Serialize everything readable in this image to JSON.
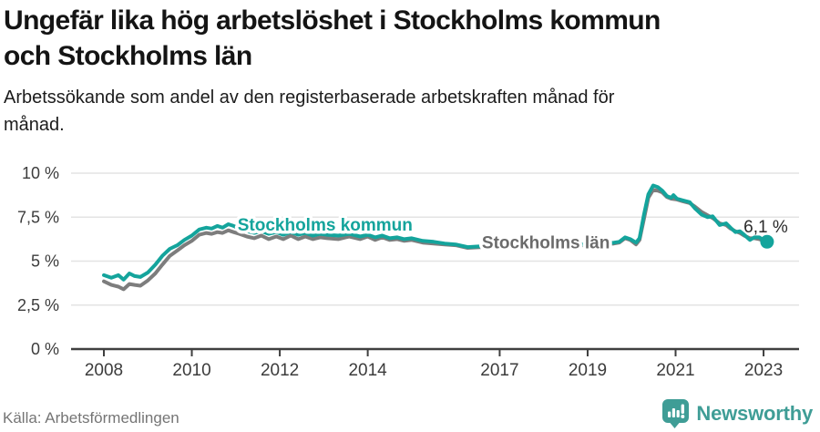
{
  "header": {
    "title_lines": [
      "Ungefär lika hög arbetslöshet i Stockholms kommun",
      "och Stockholms län"
    ],
    "subtitle_lines": [
      "Arbetssökande som andel av den registerbaserade arbetskraften månad för",
      "månad."
    ]
  },
  "footer": {
    "source": "Källa: Arbetsförmedlingen",
    "brand": "Newsworthy"
  },
  "colors": {
    "series_teal": "#14a49c",
    "series_gray": "#7d7d7d",
    "label_gray": "#6b6b6b",
    "brand_teal": "#3f9d96",
    "annotation_text": "#2b2b2b",
    "axis_text": "#3c3c3c",
    "axis_line": "#3f3f3f",
    "grid": "#e3e3e3",
    "title_text": "#141414"
  },
  "chart_data": {
    "type": "line",
    "title": "Ungefär lika hög arbetslöshet i Stockholms kommun och Stockholms län",
    "subtitle": "Arbetssökande som andel av den registerbaserade arbetskraften månad för månad.",
    "xlabel": "",
    "ylabel": "",
    "unit": "%",
    "grid": "horizontal",
    "legend_position": "inline-labels",
    "xlim": [
      2007.25,
      2023.8
    ],
    "ylim": [
      0,
      10
    ],
    "x_ticks": [
      {
        "value": 2008,
        "label": "2008"
      },
      {
        "value": 2010,
        "label": "2010"
      },
      {
        "value": 2012,
        "label": "2012"
      },
      {
        "value": 2014,
        "label": "2014"
      },
      {
        "value": 2017,
        "label": "2017"
      },
      {
        "value": 2019,
        "label": "2019"
      },
      {
        "value": 2021,
        "label": "2021"
      },
      {
        "value": 2023,
        "label": "2023"
      }
    ],
    "y_ticks": [
      {
        "value": 0,
        "label": "0 %"
      },
      {
        "value": 2.5,
        "label": "2,5 %"
      },
      {
        "value": 5,
        "label": "5 %"
      },
      {
        "value": 7.5,
        "label": "7,5 %"
      },
      {
        "value": 10,
        "label": "10 %"
      }
    ],
    "annotation": {
      "text": "6,1 %",
      "year": 2023.05,
      "value": 7.0
    },
    "series": [
      {
        "id": "stockholms-kommun",
        "name": "Stockholms kommun",
        "color": "#14a49c",
        "label_color": "#14a49c",
        "end_dot": true,
        "label": {
          "text": "Stockholms kommun",
          "year": 2013.03,
          "value": 7.1
        },
        "points": [
          [
            2008.0,
            4.2
          ],
          [
            2008.17,
            4.05
          ],
          [
            2008.33,
            4.2
          ],
          [
            2008.45,
            3.95
          ],
          [
            2008.58,
            4.3
          ],
          [
            2008.7,
            4.15
          ],
          [
            2008.83,
            4.1
          ],
          [
            2009.0,
            4.35
          ],
          [
            2009.17,
            4.8
          ],
          [
            2009.33,
            5.3
          ],
          [
            2009.5,
            5.7
          ],
          [
            2009.67,
            5.9
          ],
          [
            2009.83,
            6.2
          ],
          [
            2010.0,
            6.45
          ],
          [
            2010.17,
            6.8
          ],
          [
            2010.33,
            6.9
          ],
          [
            2010.45,
            6.85
          ],
          [
            2010.58,
            7.0
          ],
          [
            2010.7,
            6.9
          ],
          [
            2010.83,
            7.1
          ],
          [
            2010.95,
            7.0
          ],
          [
            2011.08,
            6.85
          ],
          [
            2011.25,
            6.7
          ],
          [
            2011.42,
            6.6
          ],
          [
            2011.58,
            6.7
          ],
          [
            2011.75,
            6.55
          ],
          [
            2011.92,
            6.65
          ],
          [
            2012.08,
            6.5
          ],
          [
            2012.25,
            6.65
          ],
          [
            2012.42,
            6.5
          ],
          [
            2012.58,
            6.6
          ],
          [
            2012.75,
            6.45
          ],
          [
            2012.92,
            6.55
          ],
          [
            2013.08,
            6.5
          ],
          [
            2013.33,
            6.45
          ],
          [
            2013.58,
            6.55
          ],
          [
            2013.83,
            6.4
          ],
          [
            2014.0,
            6.5
          ],
          [
            2014.17,
            6.35
          ],
          [
            2014.33,
            6.45
          ],
          [
            2014.5,
            6.3
          ],
          [
            2014.67,
            6.35
          ],
          [
            2014.83,
            6.25
          ],
          [
            2015.0,
            6.3
          ],
          [
            2015.25,
            6.15
          ],
          [
            2015.5,
            6.1
          ],
          [
            2015.75,
            6.0
          ],
          [
            2016.0,
            5.95
          ],
          [
            2016.27,
            5.8
          ],
          [
            2016.6,
            5.85
          ],
          [
            2017.0,
            5.9
          ],
          [
            2017.5,
            5.85
          ],
          [
            2018.0,
            5.9
          ],
          [
            2018.5,
            5.95
          ],
          [
            2019.0,
            5.95
          ],
          [
            2019.35,
            6.0
          ],
          [
            2019.6,
            6.05
          ],
          [
            2019.72,
            6.1
          ],
          [
            2019.85,
            6.35
          ],
          [
            2019.97,
            6.25
          ],
          [
            2020.1,
            6.05
          ],
          [
            2020.18,
            6.3
          ],
          [
            2020.28,
            7.65
          ],
          [
            2020.38,
            8.8
          ],
          [
            2020.49,
            9.3
          ],
          [
            2020.6,
            9.2
          ],
          [
            2020.7,
            9.0
          ],
          [
            2020.8,
            8.7
          ],
          [
            2020.9,
            8.6
          ],
          [
            2020.95,
            8.75
          ],
          [
            2021.03,
            8.55
          ],
          [
            2021.17,
            8.45
          ],
          [
            2021.32,
            8.35
          ],
          [
            2021.44,
            8.0
          ],
          [
            2021.59,
            7.65
          ],
          [
            2021.73,
            7.5
          ],
          [
            2021.84,
            7.55
          ],
          [
            2022.0,
            7.05
          ],
          [
            2022.15,
            7.15
          ],
          [
            2022.25,
            6.9
          ],
          [
            2022.36,
            6.65
          ],
          [
            2022.46,
            6.7
          ],
          [
            2022.56,
            6.5
          ],
          [
            2022.69,
            6.2
          ],
          [
            2022.79,
            6.35
          ],
          [
            2022.9,
            6.35
          ],
          [
            2023.0,
            6.2
          ],
          [
            2023.08,
            6.1
          ]
        ]
      },
      {
        "id": "stockholms-lan",
        "name": "Stockholms län",
        "color": "#7d7d7d",
        "label_color": "#6b6b6b",
        "end_dot": false,
        "label": {
          "text": "Stockholms län",
          "year": 2018.05,
          "value": 6.1
        },
        "points": [
          [
            2008.0,
            3.85
          ],
          [
            2008.17,
            3.65
          ],
          [
            2008.33,
            3.55
          ],
          [
            2008.45,
            3.4
          ],
          [
            2008.58,
            3.7
          ],
          [
            2008.7,
            3.65
          ],
          [
            2008.83,
            3.6
          ],
          [
            2009.0,
            3.9
          ],
          [
            2009.17,
            4.3
          ],
          [
            2009.33,
            4.8
          ],
          [
            2009.5,
            5.3
          ],
          [
            2009.67,
            5.6
          ],
          [
            2009.83,
            5.9
          ],
          [
            2010.0,
            6.15
          ],
          [
            2010.17,
            6.5
          ],
          [
            2010.33,
            6.6
          ],
          [
            2010.45,
            6.55
          ],
          [
            2010.58,
            6.65
          ],
          [
            2010.7,
            6.6
          ],
          [
            2010.83,
            6.75
          ],
          [
            2010.95,
            6.65
          ],
          [
            2011.08,
            6.55
          ],
          [
            2011.25,
            6.4
          ],
          [
            2011.42,
            6.3
          ],
          [
            2011.58,
            6.45
          ],
          [
            2011.75,
            6.25
          ],
          [
            2011.92,
            6.4
          ],
          [
            2012.08,
            6.25
          ],
          [
            2012.25,
            6.45
          ],
          [
            2012.42,
            6.25
          ],
          [
            2012.58,
            6.4
          ],
          [
            2012.75,
            6.25
          ],
          [
            2012.92,
            6.35
          ],
          [
            2013.08,
            6.3
          ],
          [
            2013.33,
            6.25
          ],
          [
            2013.58,
            6.4
          ],
          [
            2013.83,
            6.25
          ],
          [
            2014.0,
            6.4
          ],
          [
            2014.17,
            6.2
          ],
          [
            2014.33,
            6.35
          ],
          [
            2014.5,
            6.2
          ],
          [
            2014.67,
            6.25
          ],
          [
            2014.83,
            6.15
          ],
          [
            2015.0,
            6.2
          ],
          [
            2015.25,
            6.05
          ],
          [
            2015.5,
            6.0
          ],
          [
            2015.75,
            5.95
          ],
          [
            2016.0,
            5.9
          ],
          [
            2016.27,
            5.75
          ],
          [
            2016.6,
            5.8
          ],
          [
            2017.0,
            5.85
          ],
          [
            2017.5,
            5.8
          ],
          [
            2018.0,
            5.85
          ],
          [
            2018.5,
            5.9
          ],
          [
            2019.0,
            5.9
          ],
          [
            2019.35,
            5.95
          ],
          [
            2019.6,
            6.0
          ],
          [
            2019.72,
            6.05
          ],
          [
            2019.85,
            6.3
          ],
          [
            2019.97,
            6.2
          ],
          [
            2020.1,
            5.95
          ],
          [
            2020.18,
            6.2
          ],
          [
            2020.28,
            7.4
          ],
          [
            2020.38,
            8.6
          ],
          [
            2020.49,
            9.05
          ],
          [
            2020.6,
            9.0
          ],
          [
            2020.7,
            8.9
          ],
          [
            2020.8,
            8.65
          ],
          [
            2020.9,
            8.55
          ],
          [
            2021.03,
            8.5
          ],
          [
            2021.17,
            8.4
          ],
          [
            2021.32,
            8.3
          ],
          [
            2021.44,
            8.1
          ],
          [
            2021.59,
            7.8
          ],
          [
            2021.73,
            7.6
          ],
          [
            2021.84,
            7.45
          ],
          [
            2022.0,
            7.15
          ],
          [
            2022.15,
            7.05
          ],
          [
            2022.25,
            6.85
          ],
          [
            2022.36,
            6.7
          ],
          [
            2022.46,
            6.6
          ],
          [
            2022.56,
            6.45
          ],
          [
            2022.69,
            6.3
          ],
          [
            2022.79,
            6.3
          ],
          [
            2022.9,
            6.25
          ],
          [
            2023.0,
            6.15
          ],
          [
            2023.08,
            6.1
          ]
        ]
      }
    ]
  }
}
